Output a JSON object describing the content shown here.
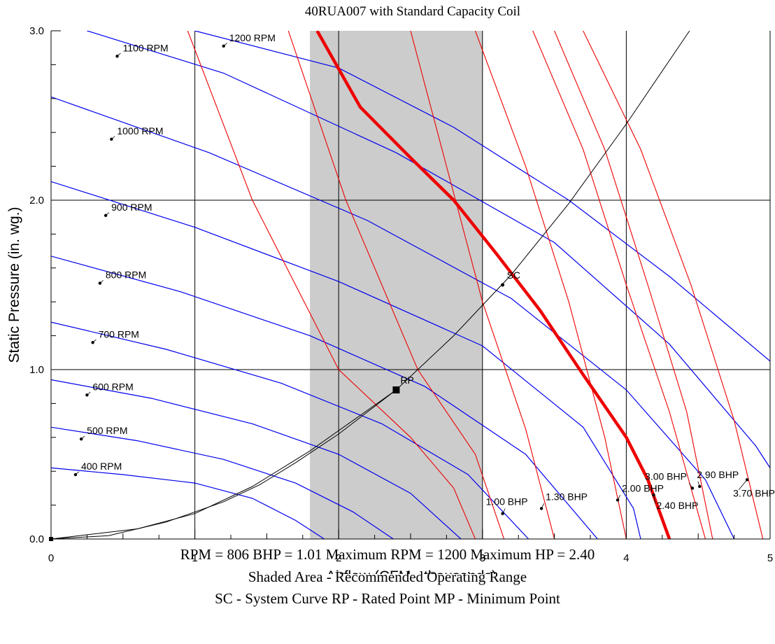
{
  "chart_data": {
    "type": "line",
    "title": "40RUA007 with Standard Capacity Coil",
    "xlabel": "Airflow (CFM - thousands)",
    "ylabel": "Static Pressure (in. wg.)",
    "xlim": [
      0,
      5
    ],
    "ylim": [
      0,
      3
    ],
    "x_ticks": [
      "0",
      "1",
      "2",
      "3",
      "4",
      "5"
    ],
    "y_ticks": [
      "0.0",
      "1.0",
      "2.0",
      "3.0"
    ],
    "grid": true,
    "shaded_range": {
      "x": [
        1.8,
        3.0
      ],
      "label": "Recommended Operating Range",
      "color": "#cccccc"
    },
    "colors": {
      "rpm": "#0000ee",
      "bhp": "#ee0000",
      "max_hp": "#ee0000",
      "system": "#000000"
    },
    "rpm_curves": [
      {
        "name": "400 RPM",
        "label_at": [
          0.17,
          0.38
        ],
        "points": [
          [
            0,
            0.42
          ],
          [
            0.5,
            0.38
          ],
          [
            1.0,
            0.33
          ],
          [
            1.4,
            0.24
          ],
          [
            1.7,
            0.11
          ],
          [
            1.9,
            0.0
          ]
        ]
      },
      {
        "name": "500 RPM",
        "label_at": [
          0.21,
          0.59
        ],
        "points": [
          [
            0,
            0.66
          ],
          [
            0.6,
            0.58
          ],
          [
            1.2,
            0.47
          ],
          [
            1.7,
            0.33
          ],
          [
            2.1,
            0.16
          ],
          [
            2.38,
            0.0
          ]
        ]
      },
      {
        "name": "600 RPM",
        "label_at": [
          0.25,
          0.85
        ],
        "points": [
          [
            0,
            0.94
          ],
          [
            0.7,
            0.83
          ],
          [
            1.4,
            0.68
          ],
          [
            2.0,
            0.5
          ],
          [
            2.5,
            0.27
          ],
          [
            2.85,
            0.0
          ]
        ]
      },
      {
        "name": "700 RPM",
        "label_at": [
          0.29,
          1.16
        ],
        "points": [
          [
            0,
            1.28
          ],
          [
            0.8,
            1.12
          ],
          [
            1.6,
            0.92
          ],
          [
            2.3,
            0.68
          ],
          [
            2.9,
            0.38
          ],
          [
            3.32,
            0.0
          ]
        ]
      },
      {
        "name": "800 RPM",
        "label_at": [
          0.34,
          1.51
        ],
        "points": [
          [
            0,
            1.67
          ],
          [
            0.9,
            1.46
          ],
          [
            1.8,
            1.2
          ],
          [
            2.6,
            0.9
          ],
          [
            3.3,
            0.5
          ],
          [
            3.8,
            0.0
          ]
        ]
      },
      {
        "name": "900 RPM",
        "label_at": [
          0.38,
          1.91
        ],
        "points": [
          [
            0,
            2.11
          ],
          [
            1.0,
            1.84
          ],
          [
            2.0,
            1.52
          ],
          [
            3.0,
            1.14
          ],
          [
            3.7,
            0.66
          ],
          [
            4.05,
            0.18
          ],
          [
            4.1,
            0.0
          ]
        ]
      },
      {
        "name": "1000 RPM",
        "label_at": [
          0.42,
          2.36
        ],
        "points": [
          [
            0,
            2.61
          ],
          [
            1.1,
            2.28
          ],
          [
            2.2,
            1.88
          ],
          [
            3.2,
            1.42
          ],
          [
            4.0,
            0.88
          ],
          [
            4.55,
            0.35
          ],
          [
            4.75,
            0.0
          ]
        ]
      },
      {
        "name": "1100 RPM",
        "label_at": [
          0.46,
          2.85
        ],
        "points": [
          [
            0.25,
            3.0
          ],
          [
            1.2,
            2.75
          ],
          [
            2.4,
            2.28
          ],
          [
            3.5,
            1.75
          ],
          [
            4.3,
            1.15
          ],
          [
            4.9,
            0.55
          ],
          [
            5.0,
            0.42
          ]
        ]
      },
      {
        "name": "1200 RPM",
        "label_at": [
          1.2,
          2.91
        ],
        "points": [
          [
            1.0,
            3.0
          ],
          [
            2.0,
            2.78
          ],
          [
            2.8,
            2.43
          ],
          [
            3.6,
            2.0
          ],
          [
            4.3,
            1.55
          ],
          [
            5.0,
            1.05
          ]
        ]
      }
    ],
    "bhp_curves": [
      {
        "points": [
          [
            0.95,
            3.0
          ],
          [
            1.4,
            2.0
          ],
          [
            2.0,
            1.0
          ],
          [
            2.5,
            0.6
          ],
          [
            2.8,
            0.3
          ],
          [
            2.95,
            0.0
          ]
        ]
      },
      {
        "name": "1.00 BHP",
        "label_at": [
          3.14,
          0.15
        ],
        "points": [
          [
            1.65,
            3.0
          ],
          [
            2.05,
            2.0
          ],
          [
            2.55,
            1.0
          ],
          [
            2.95,
            0.5
          ],
          [
            3.15,
            0.0
          ]
        ]
      },
      {
        "name": "1.30 BHP",
        "label_at": [
          3.41,
          0.18
        ],
        "points": [
          [
            2.5,
            3.0
          ],
          [
            2.75,
            2.2
          ],
          [
            3.0,
            1.4
          ],
          [
            3.3,
            0.65
          ],
          [
            3.5,
            0.0
          ]
        ]
      },
      {
        "name": "2.00 BHP",
        "label_at": [
          3.94,
          0.23
        ],
        "points": [
          [
            2.95,
            3.0
          ],
          [
            3.3,
            2.2
          ],
          [
            3.6,
            1.4
          ],
          [
            3.85,
            0.6
          ],
          [
            4.0,
            0.0
          ]
        ]
      },
      {
        "name": "2.90 BHP",
        "label_at": [
          4.51,
          0.31
        ],
        "points": [
          [
            3.35,
            3.0
          ],
          [
            3.7,
            2.3
          ],
          [
            4.0,
            1.5
          ],
          [
            4.3,
            0.75
          ],
          [
            4.55,
            0.0
          ]
        ]
      },
      {
        "name": "3.00 BHP",
        "label_at": [
          4.46,
          0.3
        ],
        "points": [
          [
            3.5,
            3.0
          ],
          [
            3.85,
            2.3
          ],
          [
            4.15,
            1.5
          ],
          [
            4.42,
            0.75
          ],
          [
            4.6,
            0.0
          ]
        ]
      },
      {
        "name": "3.70 BHP",
        "label_at": [
          4.84,
          0.35
        ],
        "points": [
          [
            3.7,
            3.0
          ],
          [
            4.1,
            2.3
          ],
          [
            4.45,
            1.5
          ],
          [
            4.75,
            0.7
          ],
          [
            4.95,
            0.0
          ]
        ]
      }
    ],
    "max_hp_curve": {
      "name": "2.40 BHP",
      "label_at": [
        4.19,
        0.26
      ],
      "points": [
        [
          1.85,
          3.0
        ],
        [
          2.15,
          2.55
        ],
        [
          2.5,
          2.25
        ],
        [
          2.8,
          2.0
        ],
        [
          3.1,
          1.68
        ],
        [
          3.4,
          1.35
        ],
        [
          3.7,
          0.97
        ],
        [
          4.0,
          0.6
        ],
        [
          4.15,
          0.35
        ],
        [
          4.3,
          0.0
        ]
      ]
    },
    "system_curve": {
      "points": [
        [
          0,
          0
        ],
        [
          0.6,
          0.06
        ],
        [
          1.0,
          0.15
        ],
        [
          1.4,
          0.31
        ],
        [
          1.8,
          0.52
        ],
        [
          2.2,
          0.76
        ],
        [
          2.4,
          0.88
        ],
        [
          2.8,
          1.2
        ],
        [
          3.2,
          1.56
        ],
        [
          3.6,
          1.98
        ],
        [
          4.0,
          2.45
        ],
        [
          4.4,
          2.95
        ],
        [
          4.44,
          3.0
        ]
      ]
    },
    "system_curve_lower": {
      "points": [
        [
          0,
          0
        ],
        [
          0.4,
          0.02
        ],
        [
          0.8,
          0.1
        ],
        [
          1.2,
          0.22
        ],
        [
          1.45,
          0.32
        ],
        [
          1.7,
          0.45
        ],
        [
          2.0,
          0.62
        ],
        [
          2.4,
          0.88
        ]
      ]
    },
    "points": [
      {
        "label": "RP",
        "x": 2.4,
        "y": 0.88,
        "marker": "square"
      },
      {
        "label": "SC",
        "x": 3.14,
        "y": 1.5,
        "marker": "dot"
      },
      {
        "label": "",
        "x": 0.0,
        "y": 0.0,
        "marker": "square"
      }
    ]
  },
  "footer": {
    "line1": "RPM = 806  BHP = 1.01  Maximum RPM = 1200  Maximum HP = 2.40",
    "line2": "Shaded Area - Recommended Operating Range",
    "line3": "SC - System Curve  RP - Rated Point  MP - Minimum Point"
  }
}
